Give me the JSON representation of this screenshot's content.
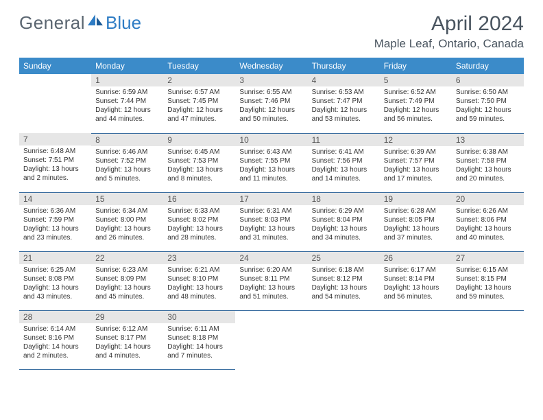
{
  "brand": {
    "part1": "General",
    "part2": "Blue"
  },
  "title": "April 2024",
  "location": "Maple Leaf, Ontario, Canada",
  "colors": {
    "header_bg": "#3b8bc9",
    "header_text": "#ffffff",
    "daynum_bg": "#e6e6e6",
    "daynum_text": "#555555",
    "body_text": "#333333",
    "rule": "#3b6ea0",
    "brand_gray": "#5a6570",
    "brand_blue": "#2e7cc4",
    "title_gray": "#4a5560"
  },
  "typography": {
    "title_size": 30,
    "location_size": 17,
    "weekday_size": 12,
    "daynum_size": 12,
    "body_size": 10
  },
  "weekdays": [
    "Sunday",
    "Monday",
    "Tuesday",
    "Wednesday",
    "Thursday",
    "Friday",
    "Saturday"
  ],
  "weeks": [
    [
      null,
      {
        "n": "1",
        "sunrise": "6:59 AM",
        "sunset": "7:44 PM",
        "daylight": "12 hours and 44 minutes."
      },
      {
        "n": "2",
        "sunrise": "6:57 AM",
        "sunset": "7:45 PM",
        "daylight": "12 hours and 47 minutes."
      },
      {
        "n": "3",
        "sunrise": "6:55 AM",
        "sunset": "7:46 PM",
        "daylight": "12 hours and 50 minutes."
      },
      {
        "n": "4",
        "sunrise": "6:53 AM",
        "sunset": "7:47 PM",
        "daylight": "12 hours and 53 minutes."
      },
      {
        "n": "5",
        "sunrise": "6:52 AM",
        "sunset": "7:49 PM",
        "daylight": "12 hours and 56 minutes."
      },
      {
        "n": "6",
        "sunrise": "6:50 AM",
        "sunset": "7:50 PM",
        "daylight": "12 hours and 59 minutes."
      }
    ],
    [
      {
        "n": "7",
        "sunrise": "6:48 AM",
        "sunset": "7:51 PM",
        "daylight": "13 hours and 2 minutes."
      },
      {
        "n": "8",
        "sunrise": "6:46 AM",
        "sunset": "7:52 PM",
        "daylight": "13 hours and 5 minutes."
      },
      {
        "n": "9",
        "sunrise": "6:45 AM",
        "sunset": "7:53 PM",
        "daylight": "13 hours and 8 minutes."
      },
      {
        "n": "10",
        "sunrise": "6:43 AM",
        "sunset": "7:55 PM",
        "daylight": "13 hours and 11 minutes."
      },
      {
        "n": "11",
        "sunrise": "6:41 AM",
        "sunset": "7:56 PM",
        "daylight": "13 hours and 14 minutes."
      },
      {
        "n": "12",
        "sunrise": "6:39 AM",
        "sunset": "7:57 PM",
        "daylight": "13 hours and 17 minutes."
      },
      {
        "n": "13",
        "sunrise": "6:38 AM",
        "sunset": "7:58 PM",
        "daylight": "13 hours and 20 minutes."
      }
    ],
    [
      {
        "n": "14",
        "sunrise": "6:36 AM",
        "sunset": "7:59 PM",
        "daylight": "13 hours and 23 minutes."
      },
      {
        "n": "15",
        "sunrise": "6:34 AM",
        "sunset": "8:00 PM",
        "daylight": "13 hours and 26 minutes."
      },
      {
        "n": "16",
        "sunrise": "6:33 AM",
        "sunset": "8:02 PM",
        "daylight": "13 hours and 28 minutes."
      },
      {
        "n": "17",
        "sunrise": "6:31 AM",
        "sunset": "8:03 PM",
        "daylight": "13 hours and 31 minutes."
      },
      {
        "n": "18",
        "sunrise": "6:29 AM",
        "sunset": "8:04 PM",
        "daylight": "13 hours and 34 minutes."
      },
      {
        "n": "19",
        "sunrise": "6:28 AM",
        "sunset": "8:05 PM",
        "daylight": "13 hours and 37 minutes."
      },
      {
        "n": "20",
        "sunrise": "6:26 AM",
        "sunset": "8:06 PM",
        "daylight": "13 hours and 40 minutes."
      }
    ],
    [
      {
        "n": "21",
        "sunrise": "6:25 AM",
        "sunset": "8:08 PM",
        "daylight": "13 hours and 43 minutes."
      },
      {
        "n": "22",
        "sunrise": "6:23 AM",
        "sunset": "8:09 PM",
        "daylight": "13 hours and 45 minutes."
      },
      {
        "n": "23",
        "sunrise": "6:21 AM",
        "sunset": "8:10 PM",
        "daylight": "13 hours and 48 minutes."
      },
      {
        "n": "24",
        "sunrise": "6:20 AM",
        "sunset": "8:11 PM",
        "daylight": "13 hours and 51 minutes."
      },
      {
        "n": "25",
        "sunrise": "6:18 AM",
        "sunset": "8:12 PM",
        "daylight": "13 hours and 54 minutes."
      },
      {
        "n": "26",
        "sunrise": "6:17 AM",
        "sunset": "8:14 PM",
        "daylight": "13 hours and 56 minutes."
      },
      {
        "n": "27",
        "sunrise": "6:15 AM",
        "sunset": "8:15 PM",
        "daylight": "13 hours and 59 minutes."
      }
    ],
    [
      {
        "n": "28",
        "sunrise": "6:14 AM",
        "sunset": "8:16 PM",
        "daylight": "14 hours and 2 minutes."
      },
      {
        "n": "29",
        "sunrise": "6:12 AM",
        "sunset": "8:17 PM",
        "daylight": "14 hours and 4 minutes."
      },
      {
        "n": "30",
        "sunrise": "6:11 AM",
        "sunset": "8:18 PM",
        "daylight": "14 hours and 7 minutes."
      },
      null,
      null,
      null,
      null
    ]
  ],
  "labels": {
    "sunrise": "Sunrise:",
    "sunset": "Sunset:",
    "daylight": "Daylight:"
  }
}
